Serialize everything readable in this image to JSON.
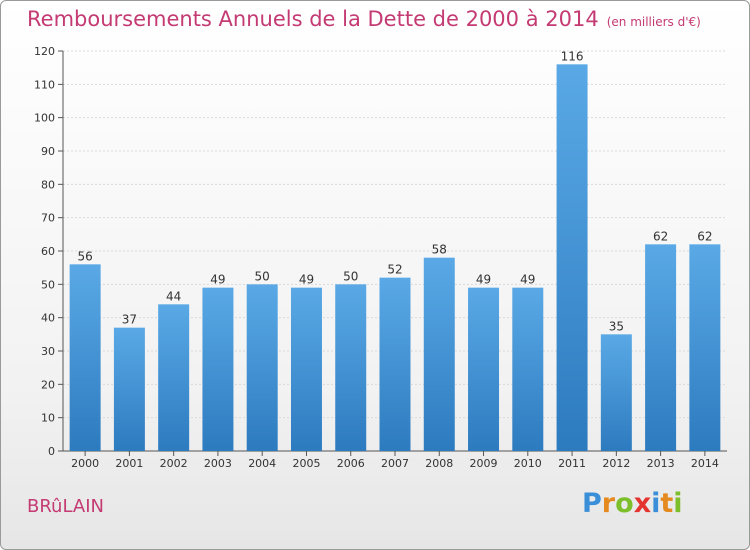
{
  "header": {
    "title": "Remboursements Annuels de la Dette de 2000 à 2014",
    "unit": "(en milliers d'€)"
  },
  "footer": {
    "commune": "BRûLAIN",
    "logo_letters": [
      "P",
      "r",
      "o",
      "x",
      "i",
      "t",
      "i"
    ],
    "logo_colors": [
      "#3a8fd8",
      "#e58a1f",
      "#7cbf2a",
      "#e3342f",
      "#3a8fd8",
      "#e58a1f",
      "#7cbf2a"
    ]
  },
  "chart_data": {
    "type": "bar",
    "categories": [
      "2000",
      "2001",
      "2002",
      "2003",
      "2004",
      "2005",
      "2006",
      "2007",
      "2008",
      "2009",
      "2010",
      "2011",
      "2012",
      "2013",
      "2014"
    ],
    "values": [
      56,
      37,
      44,
      49,
      50,
      49,
      50,
      52,
      58,
      49,
      49,
      116,
      35,
      62,
      62
    ],
    "ylim": [
      0,
      120
    ],
    "yticks": [
      0,
      10,
      20,
      30,
      40,
      50,
      60,
      70,
      80,
      90,
      100,
      110,
      120
    ],
    "grid": true,
    "bar_color_top": "#5aa9e6",
    "bar_color_bottom": "#2d7bbf",
    "title_color": "#c43a72"
  }
}
